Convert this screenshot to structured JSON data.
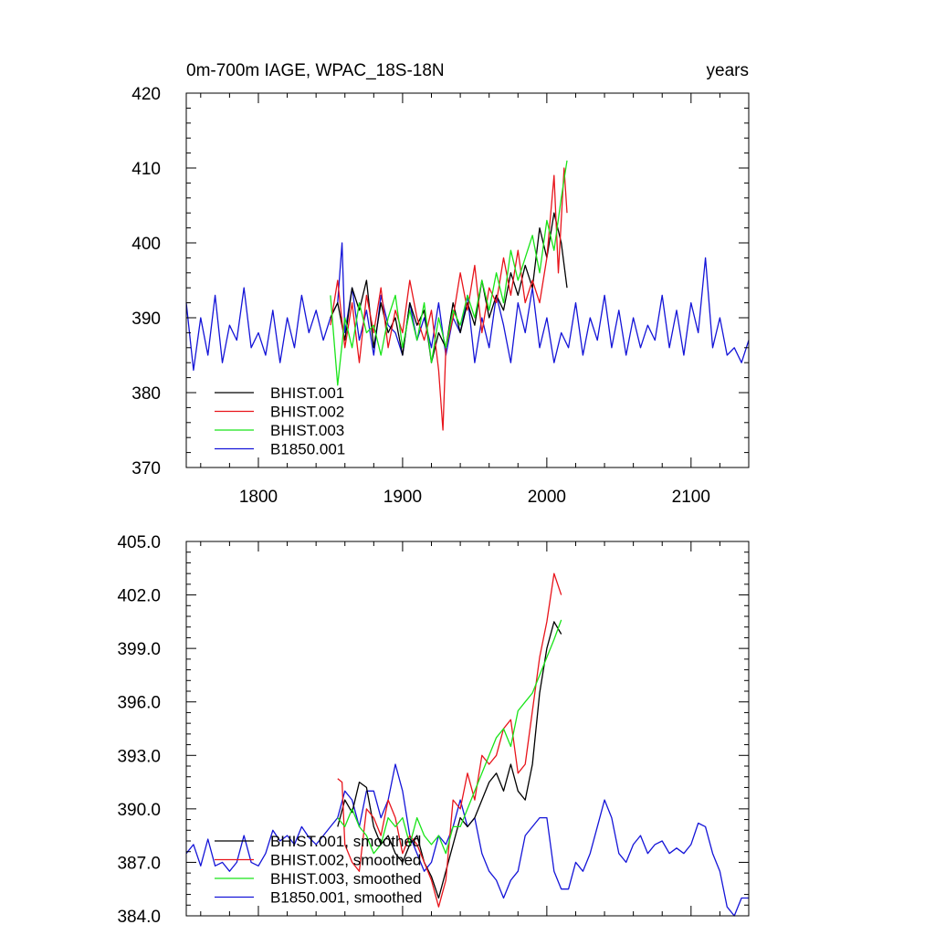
{
  "colors": {
    "BHIST.001": "#000000",
    "BHIST.002": "#e8141b",
    "BHIST.003": "#19e419",
    "B1850.001": "#1414d8"
  },
  "chart_data": [
    {
      "type": "line",
      "title": "0m-700m IAGE, WPAC_18S-18N",
      "title_right": "years",
      "xlim": [
        1750,
        2140
      ],
      "ylim": [
        370,
        420
      ],
      "x_ticks": [
        1800,
        1900,
        2000,
        2100
      ],
      "x_tick_labels": [
        "1800",
        "1900",
        "2000",
        "2100"
      ],
      "y_ticks": [
        370,
        380,
        390,
        400,
        410,
        420
      ],
      "y_tick_labels": [
        "370",
        "380",
        "390",
        "400",
        "410",
        "420"
      ],
      "legend_position": "bottom-left",
      "series": [
        {
          "name": "BHIST.001",
          "color_key": "BHIST.001",
          "x": [
            1850,
            1855,
            1860,
            1865,
            1870,
            1875,
            1880,
            1885,
            1890,
            1895,
            1900,
            1905,
            1910,
            1915,
            1920,
            1925,
            1930,
            1935,
            1940,
            1945,
            1950,
            1955,
            1960,
            1965,
            1970,
            1975,
            1980,
            1985,
            1990,
            1995,
            2000,
            2005,
            2010,
            2014
          ],
          "y": [
            390,
            392,
            387,
            394,
            391,
            395,
            386,
            392,
            388,
            390,
            385,
            392,
            389,
            391,
            384,
            388,
            386,
            392,
            388,
            392,
            389,
            395,
            390,
            393,
            391,
            396,
            393,
            397,
            394,
            402,
            398,
            404,
            400,
            394
          ]
        },
        {
          "name": "BHIST.002",
          "color_key": "BHIST.002",
          "x": [
            1850,
            1855,
            1860,
            1865,
            1870,
            1875,
            1880,
            1885,
            1890,
            1895,
            1900,
            1905,
            1910,
            1915,
            1920,
            1925,
            1928,
            1930,
            1935,
            1940,
            1945,
            1950,
            1955,
            1960,
            1965,
            1970,
            1975,
            1980,
            1985,
            1990,
            1995,
            2000,
            2005,
            2008,
            2012,
            2014
          ],
          "y": [
            389,
            395,
            386,
            392,
            384,
            393,
            388,
            394,
            386,
            391,
            388,
            395,
            390,
            387,
            391,
            383,
            375,
            386,
            390,
            396,
            391,
            397,
            388,
            394,
            392,
            398,
            393,
            399,
            392,
            395,
            392,
            398,
            409,
            396,
            410,
            404
          ]
        },
        {
          "name": "BHIST.003",
          "color_key": "BHIST.003",
          "x": [
            1850,
            1855,
            1860,
            1865,
            1870,
            1875,
            1880,
            1885,
            1890,
            1895,
            1900,
            1905,
            1910,
            1915,
            1920,
            1925,
            1930,
            1935,
            1940,
            1945,
            1950,
            1955,
            1960,
            1965,
            1970,
            1975,
            1980,
            1985,
            1990,
            1995,
            2000,
            2005,
            2010,
            2014
          ],
          "y": [
            393,
            381,
            390,
            386,
            392,
            388,
            389,
            385,
            390,
            393,
            386,
            391,
            387,
            392,
            384,
            390,
            386,
            391,
            389,
            393,
            390,
            395,
            391,
            396,
            392,
            399,
            395,
            398,
            401,
            396,
            403,
            399,
            406,
            411
          ]
        },
        {
          "name": "B1850.001",
          "color_key": "B1850.001",
          "x": [
            1750,
            1755,
            1760,
            1765,
            1770,
            1775,
            1780,
            1785,
            1790,
            1795,
            1800,
            1805,
            1810,
            1815,
            1820,
            1825,
            1830,
            1835,
            1840,
            1845,
            1850,
            1855,
            1858,
            1860,
            1865,
            1870,
            1875,
            1880,
            1885,
            1890,
            1895,
            1900,
            1905,
            1910,
            1915,
            1920,
            1925,
            1930,
            1935,
            1940,
            1945,
            1950,
            1955,
            1960,
            1965,
            1970,
            1975,
            1980,
            1985,
            1990,
            1995,
            2000,
            2005,
            2010,
            2015,
            2020,
            2025,
            2030,
            2035,
            2040,
            2045,
            2050,
            2055,
            2060,
            2065,
            2070,
            2075,
            2080,
            2085,
            2090,
            2095,
            2100,
            2105,
            2110,
            2115,
            2120,
            2125,
            2130,
            2135,
            2140
          ],
          "y": [
            392,
            383,
            390,
            385,
            393,
            384,
            389,
            387,
            394,
            386,
            388,
            385,
            391,
            384,
            390,
            386,
            393,
            388,
            391,
            387,
            390,
            392,
            400,
            388,
            394,
            387,
            391,
            385,
            393,
            389,
            388,
            385,
            392,
            387,
            390,
            386,
            392,
            385,
            390,
            388,
            393,
            384,
            390,
            386,
            393,
            389,
            384,
            392,
            388,
            394,
            386,
            390,
            384,
            388,
            386,
            392,
            385,
            390,
            387,
            393,
            386,
            391,
            385,
            390,
            386,
            389,
            387,
            393,
            386,
            391,
            385,
            392,
            388,
            398,
            386,
            390,
            385,
            386,
            384,
            387
          ]
        }
      ]
    },
    {
      "type": "line",
      "xlim": [
        1750,
        2140
      ],
      "ylim": [
        384,
        405
      ],
      "x_ticks": [
        1800,
        1900,
        2000,
        2100
      ],
      "y_ticks": [
        384,
        387,
        390,
        393,
        396,
        399,
        402,
        405
      ],
      "y_tick_labels": [
        "384.0",
        "387.0",
        "390.0",
        "393.0",
        "396.0",
        "399.0",
        "402.0",
        "405.0"
      ],
      "legend_position": "bottom-left",
      "series": [
        {
          "name": "BHIST.001, smoothed",
          "color_key": "BHIST.001",
          "x": [
            1855,
            1860,
            1865,
            1870,
            1875,
            1880,
            1885,
            1890,
            1895,
            1900,
            1905,
            1910,
            1915,
            1920,
            1925,
            1930,
            1935,
            1940,
            1945,
            1950,
            1955,
            1960,
            1965,
            1970,
            1975,
            1980,
            1985,
            1990,
            1995,
            2000,
            2005,
            2010
          ],
          "y": [
            389.0,
            390.5,
            389.8,
            391.5,
            391.2,
            389.0,
            388.0,
            388.5,
            387.5,
            387.0,
            388.0,
            388.5,
            387.0,
            386.2,
            385.0,
            386.5,
            388.0,
            389.5,
            389.0,
            389.5,
            390.5,
            391.5,
            392.0,
            391.0,
            392.5,
            391.0,
            390.5,
            392.5,
            396.5,
            399.0,
            400.5,
            399.8
          ]
        },
        {
          "name": "BHIST.002, smoothed",
          "color_key": "BHIST.002",
          "x": [
            1855,
            1858,
            1860,
            1865,
            1870,
            1875,
            1880,
            1885,
            1890,
            1895,
            1900,
            1905,
            1910,
            1915,
            1920,
            1925,
            1930,
            1935,
            1940,
            1945,
            1950,
            1955,
            1960,
            1965,
            1970,
            1975,
            1980,
            1985,
            1990,
            1995,
            2000,
            2005,
            2010
          ],
          "y": [
            391.7,
            391.5,
            388.0,
            387.0,
            386.5,
            390.0,
            389.5,
            388.5,
            390.5,
            389.5,
            387.5,
            388.5,
            388.0,
            387.0,
            386.0,
            384.5,
            386.0,
            390.5,
            390.0,
            392.0,
            390.5,
            393.0,
            392.5,
            393.0,
            394.5,
            395.0,
            392.0,
            392.5,
            395.5,
            398.5,
            400.5,
            403.2,
            402.0
          ]
        },
        {
          "name": "BHIST.003, smoothed",
          "color_key": "BHIST.003",
          "x": [
            1855,
            1860,
            1865,
            1870,
            1875,
            1880,
            1885,
            1890,
            1895,
            1900,
            1905,
            1910,
            1915,
            1920,
            1925,
            1930,
            1935,
            1940,
            1945,
            1950,
            1955,
            1960,
            1965,
            1970,
            1975,
            1980,
            1985,
            1990,
            1995,
            2000,
            2005,
            2010
          ],
          "y": [
            389.5,
            389.0,
            390.0,
            389.0,
            388.5,
            387.5,
            388.0,
            389.5,
            389.0,
            389.5,
            388.0,
            389.5,
            388.5,
            388.0,
            388.5,
            387.5,
            389.0,
            389.0,
            390.0,
            391.0,
            392.0,
            393.0,
            394.0,
            394.5,
            393.5,
            395.5,
            396.0,
            396.5,
            397.5,
            398.5,
            399.5,
            400.6
          ]
        },
        {
          "name": "B1850.001, smoothed",
          "color_key": "B1850.001",
          "x": [
            1750,
            1755,
            1760,
            1765,
            1770,
            1775,
            1780,
            1785,
            1790,
            1795,
            1800,
            1805,
            1810,
            1815,
            1820,
            1825,
            1830,
            1835,
            1840,
            1845,
            1850,
            1855,
            1860,
            1865,
            1870,
            1875,
            1880,
            1885,
            1890,
            1895,
            1900,
            1905,
            1910,
            1915,
            1920,
            1925,
            1930,
            1935,
            1940,
            1945,
            1950,
            1955,
            1960,
            1965,
            1970,
            1975,
            1980,
            1985,
            1990,
            1995,
            2000,
            2005,
            2010,
            2015,
            2020,
            2025,
            2030,
            2035,
            2040,
            2045,
            2050,
            2055,
            2060,
            2065,
            2070,
            2075,
            2080,
            2085,
            2090,
            2095,
            2100,
            2105,
            2110,
            2115,
            2120,
            2125,
            2130,
            2135,
            2140
          ],
          "y": [
            387.5,
            388.0,
            386.8,
            388.3,
            386.8,
            387.0,
            386.5,
            387.0,
            388.5,
            387.0,
            386.8,
            387.5,
            388.8,
            388.2,
            388.5,
            388.0,
            389.0,
            388.4,
            388.0,
            388.5,
            389.0,
            389.5,
            391.0,
            390.5,
            389.0,
            391.0,
            391.0,
            389.5,
            390.5,
            392.5,
            391.0,
            388.5,
            387.5,
            386.5,
            387.0,
            388.5,
            388.0,
            389.0,
            390.5,
            389.0,
            389.5,
            387.5,
            386.5,
            386.0,
            385.0,
            386.0,
            386.5,
            388.5,
            389.0,
            389.5,
            389.5,
            386.5,
            385.5,
            385.5,
            387.0,
            386.5,
            387.5,
            389.0,
            390.5,
            389.5,
            387.5,
            387.0,
            388.0,
            388.5,
            387.5,
            388.0,
            388.2,
            387.5,
            387.8,
            387.5,
            388.0,
            389.2,
            389.0,
            387.5,
            386.5,
            384.5,
            384.0,
            385.0,
            385.0
          ]
        }
      ]
    }
  ]
}
